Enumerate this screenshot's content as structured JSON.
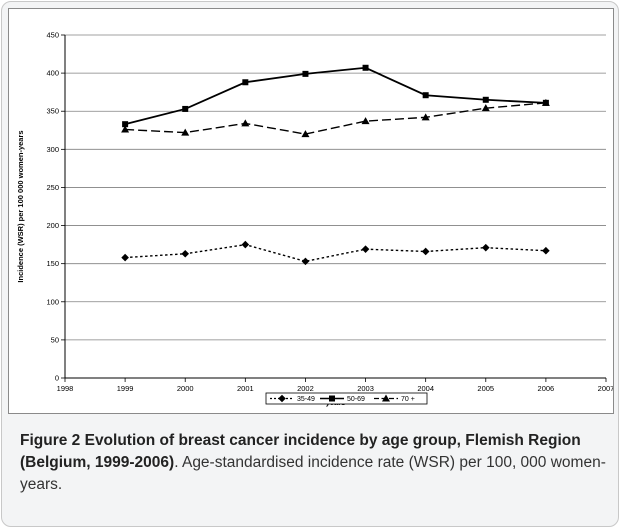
{
  "chart_data": {
    "type": "line",
    "title": "",
    "xlabel": "years",
    "ylabel": "Incidence (WSR) per 100 000 women-years",
    "xlim": [
      1998,
      2007
    ],
    "ylim": [
      0,
      450
    ],
    "xticks": [
      "1998",
      "1999",
      "2000",
      "2001",
      "2002",
      "2003",
      "2004",
      "2005",
      "2006",
      "2007"
    ],
    "yticks": [
      "0",
      "50",
      "100",
      "150",
      "200",
      "250",
      "300",
      "350",
      "400",
      "450"
    ],
    "grid": "horizontal",
    "legend_position": "bottom",
    "x": [
      1999,
      2000,
      2001,
      2002,
      2003,
      2004,
      2005,
      2006
    ],
    "series": [
      {
        "name": "35-49",
        "marker": "diamond",
        "dash": "dotted",
        "values": [
          158,
          163,
          175,
          153,
          169,
          166,
          171,
          167
        ]
      },
      {
        "name": "50-69",
        "marker": "square",
        "dash": "solid",
        "values": [
          333,
          353,
          388,
          399,
          407,
          371,
          365,
          361
        ]
      },
      {
        "name": "70 +",
        "marker": "triangle",
        "dash": "dashed",
        "values": [
          326,
          322,
          334,
          320,
          337,
          342,
          354,
          361
        ]
      }
    ]
  },
  "caption": {
    "label": "Figure 2",
    "title": " Evolution of breast cancer incidence by age group, Flemish Region (Belgium, 1999-2006)",
    "text": ". Age-standardised incidence rate (WSR) per 100, 000 women-years."
  }
}
